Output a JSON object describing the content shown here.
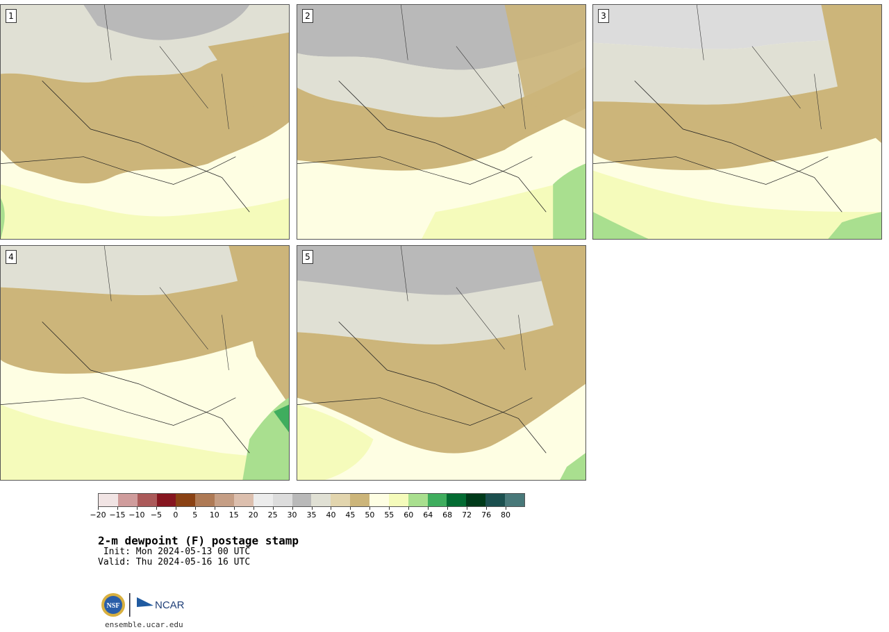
{
  "panels": [
    {
      "label": "1"
    },
    {
      "label": "2"
    },
    {
      "label": "3"
    },
    {
      "label": "4"
    },
    {
      "label": "5"
    }
  ],
  "colorbar": {
    "colors": [
      "#f1e4e4",
      "#cf9c9c",
      "#ab5a5a",
      "#861620",
      "#8a4214",
      "#ae7a55",
      "#c59e85",
      "#dcbfae",
      "#ececec",
      "#dcdcdc",
      "#b9b9b9",
      "#e0e0d4",
      "#e2d5ae",
      "#ccb57a",
      "#fefee3",
      "#f5fbbb",
      "#a9df8f",
      "#3fad5e",
      "#036b32",
      "#003a1a",
      "#1b4f4e",
      "#487879"
    ],
    "ticks": [
      "−20",
      "−15",
      "−10",
      "−5",
      "0",
      "5",
      "10",
      "15",
      "20",
      "25",
      "30",
      "35",
      "40",
      "45",
      "50",
      "55",
      "60",
      "64",
      "68",
      "72",
      "76",
      "80"
    ]
  },
  "title": "2-m dewpoint (F) postage stamp",
  "init": " Init: Mon 2024-05-13 00 UTC",
  "valid": "Valid: Thu 2024-05-16 16 UTC",
  "footer": "ensemble.ucar.edu",
  "logo": {
    "org1": "NSF",
    "org2": "NCAR"
  }
}
